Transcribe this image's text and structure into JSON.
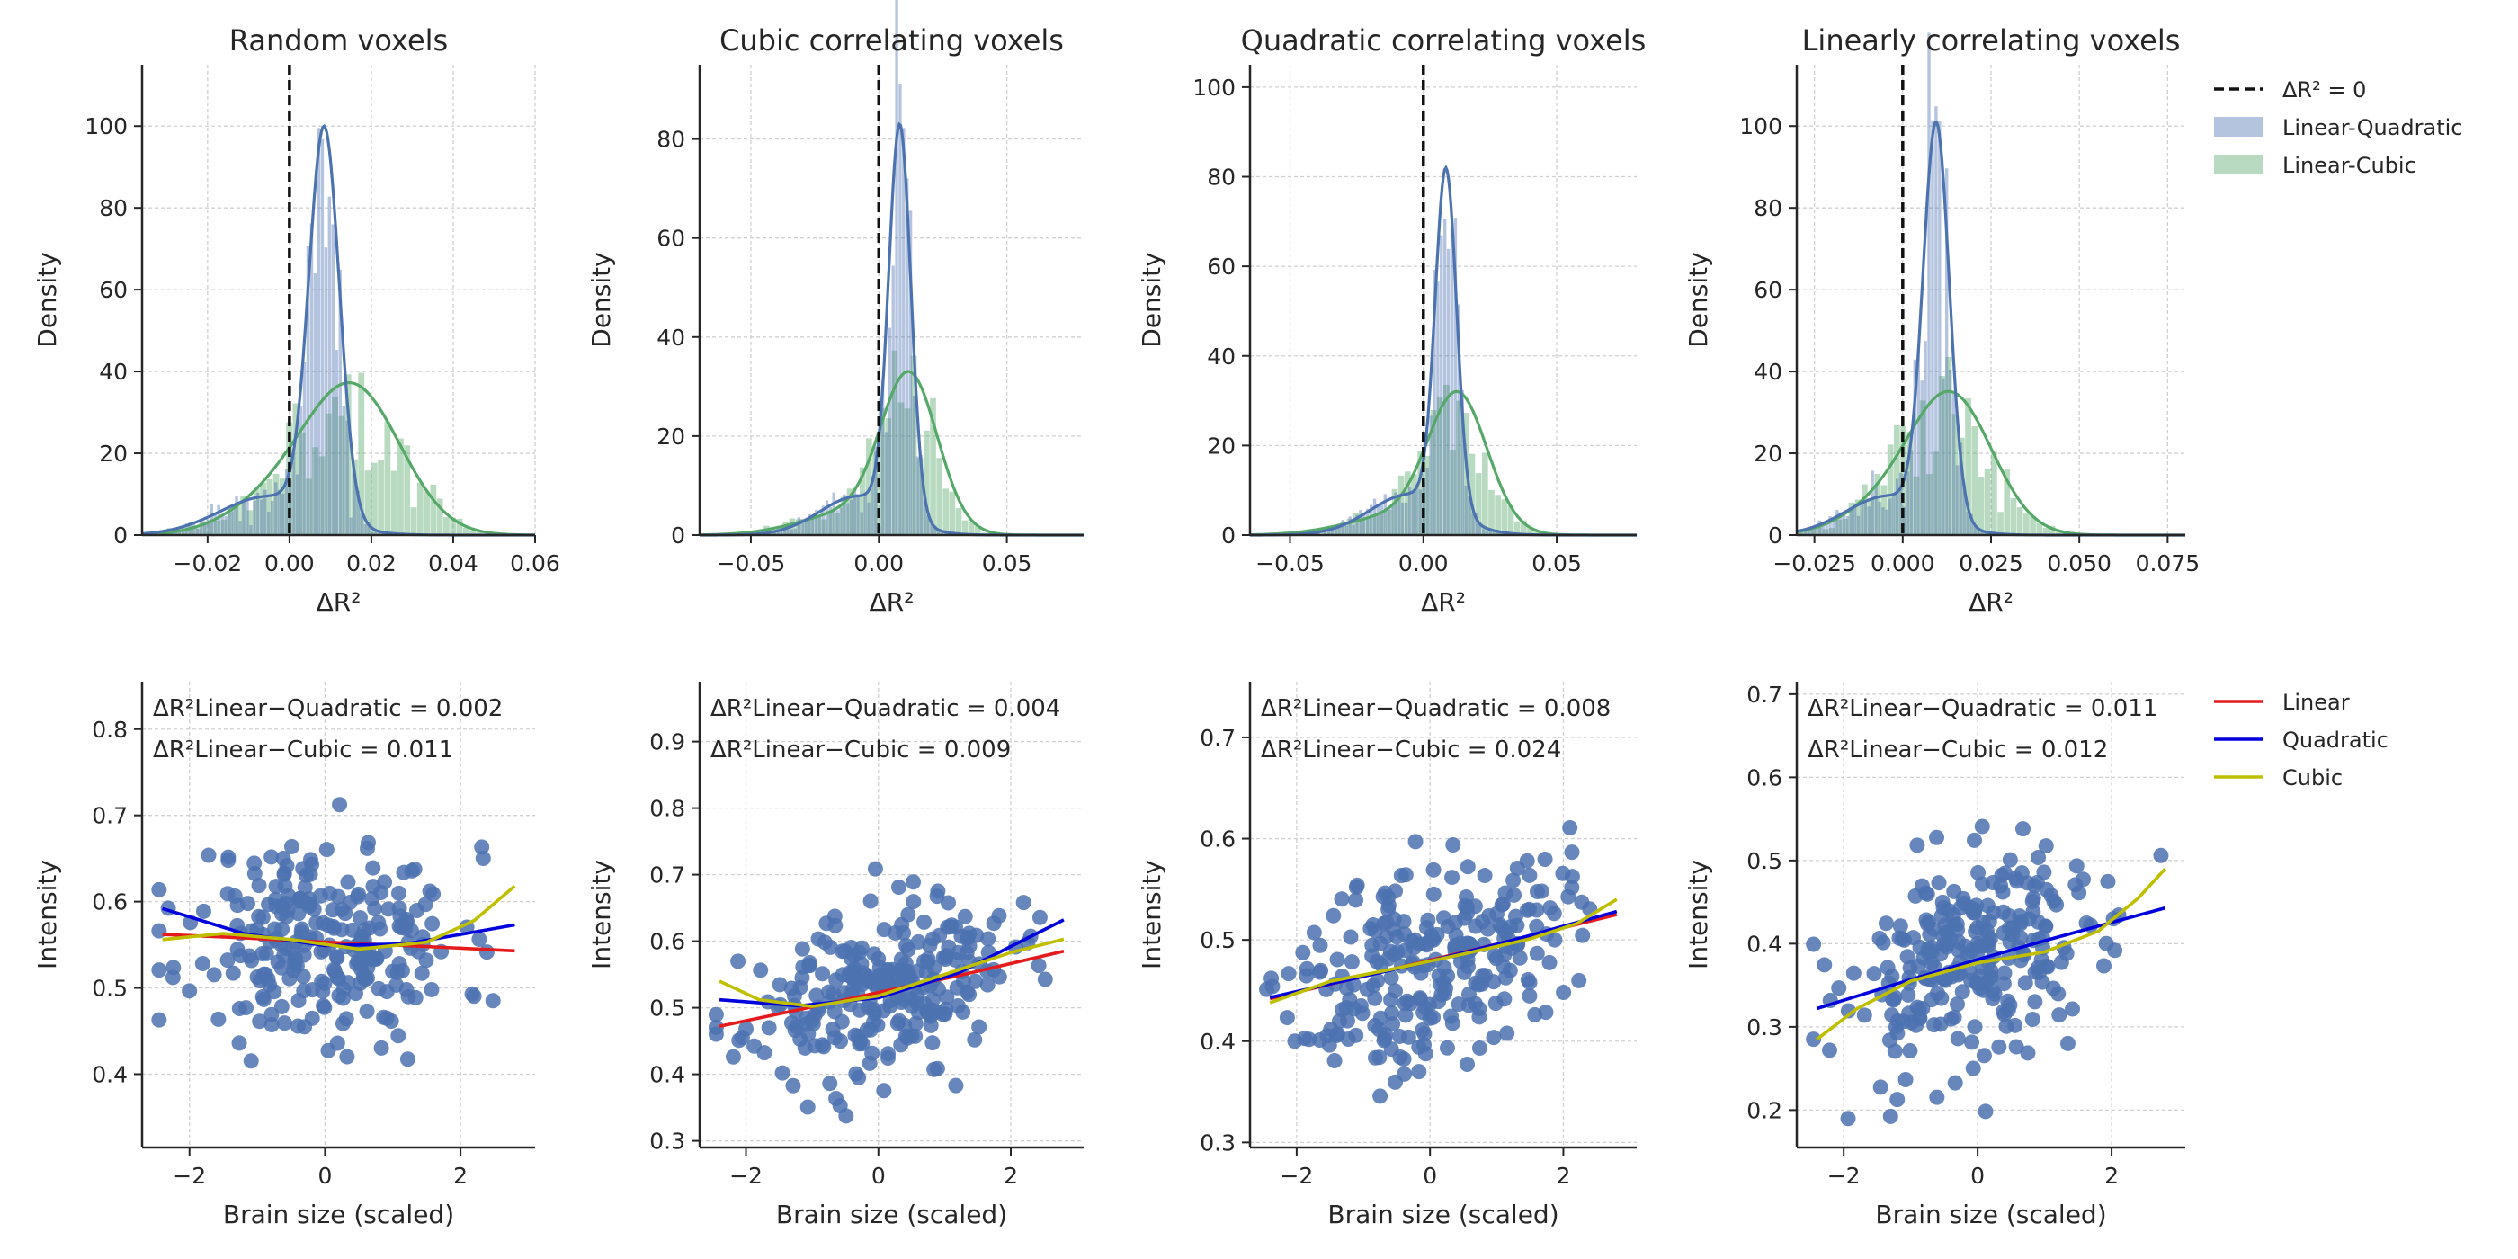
{
  "chart_data": [
    {
      "type": "histogram",
      "title": "Random voxels",
      "xlabel": "ΔR²",
      "ylabel": "Density",
      "xlim": [
        -0.036,
        0.06
      ],
      "ylim": [
        0,
        115
      ],
      "xticks": [
        -0.02,
        0.0,
        0.02,
        0.04,
        0.06
      ],
      "xtick_labels": [
        "−0.02",
        "0.00",
        "0.02",
        "0.04",
        "0.06"
      ],
      "yticks": [
        0,
        20,
        40,
        60,
        80,
        100
      ],
      "reference_line_x": 0,
      "series": [
        {
          "name": "Linear-Quadratic",
          "color": "#4c72b0",
          "kde": {
            "mu": 0.0085,
            "sigma": 0.0037,
            "peak": 100,
            "tail_weight": 0.1,
            "tail_mu": -0.005,
            "tail_sigma": 0.012
          }
        },
        {
          "name": "Linear-Cubic",
          "color": "#55a868",
          "kde": {
            "mu": 0.016,
            "sigma": 0.0115,
            "peak": 37,
            "tail_weight": 0.25,
            "tail_mu": -0.002,
            "tail_sigma": 0.012
          }
        }
      ]
    },
    {
      "type": "histogram",
      "title": "Cubic correlating voxels",
      "xlabel": "ΔR²",
      "ylabel": "Density",
      "xlim": [
        -0.07,
        0.08
      ],
      "ylim": [
        0,
        95
      ],
      "xticks": [
        -0.05,
        0.0,
        0.05
      ],
      "xtick_labels": [
        "−0.05",
        "0.00",
        "0.05"
      ],
      "yticks": [
        0,
        20,
        40,
        60,
        80
      ],
      "reference_line_x": 0,
      "series": [
        {
          "name": "Linear-Quadratic",
          "color": "#4c72b0",
          "kde": {
            "mu": 0.0082,
            "sigma": 0.0043,
            "peak": 83,
            "tail_weight": 0.1,
            "tail_mu": -0.008,
            "tail_sigma": 0.015
          }
        },
        {
          "name": "Linear-Cubic",
          "color": "#55a868",
          "kde": {
            "mu": 0.012,
            "sigma": 0.011,
            "peak": 33,
            "tail_weight": 0.15,
            "tail_mu": -0.01,
            "tail_sigma": 0.02
          }
        }
      ]
    },
    {
      "type": "histogram",
      "title": "Quadratic correlating voxels",
      "xlabel": "ΔR²",
      "ylabel": "Density",
      "xlim": [
        -0.065,
        0.08
      ],
      "ylim": [
        0,
        105
      ],
      "xticks": [
        -0.05,
        0.0,
        0.05
      ],
      "xtick_labels": [
        "−0.05",
        "0.00",
        "0.05"
      ],
      "yticks": [
        0,
        20,
        40,
        60,
        80,
        100
      ],
      "reference_line_x": 0,
      "series": [
        {
          "name": "Linear-Quadratic",
          "color": "#4c72b0",
          "kde": {
            "mu": 0.0085,
            "sigma": 0.004,
            "peak": 82,
            "tail_weight": 0.12,
            "tail_mu": -0.005,
            "tail_sigma": 0.015
          }
        },
        {
          "name": "Linear-Cubic",
          "color": "#55a868",
          "kde": {
            "mu": 0.013,
            "sigma": 0.011,
            "peak": 32,
            "tail_weight": 0.15,
            "tail_mu": -0.008,
            "tail_sigma": 0.02
          }
        }
      ]
    },
    {
      "type": "histogram",
      "title": "Linearly correlating voxels",
      "xlabel": "ΔR²",
      "ylabel": "Density",
      "xlim": [
        -0.03,
        0.08
      ],
      "ylim": [
        0,
        115
      ],
      "xticks": [
        -0.025,
        0.0,
        0.025,
        0.05,
        0.075
      ],
      "xtick_labels": [
        "−0.025",
        "0.000",
        "0.025",
        "0.050",
        "0.075"
      ],
      "yticks": [
        0,
        20,
        40,
        60,
        80,
        100
      ],
      "reference_line_x": 0,
      "series": [
        {
          "name": "Linear-Quadratic",
          "color": "#4c72b0",
          "kde": {
            "mu": 0.0095,
            "sigma": 0.0037,
            "peak": 101,
            "tail_weight": 0.1,
            "tail_mu": -0.004,
            "tail_sigma": 0.012
          }
        },
        {
          "name": "Linear-Cubic",
          "color": "#55a868",
          "kde": {
            "mu": 0.014,
            "sigma": 0.0115,
            "peak": 35,
            "tail_weight": 0.2,
            "tail_mu": -0.005,
            "tail_sigma": 0.012
          }
        }
      ]
    },
    {
      "type": "scatter",
      "xlabel": "Brain size (scaled)",
      "ylabel": "Intensity",
      "xlim": [
        -2.7,
        3.1
      ],
      "ylim": [
        0.315,
        0.855
      ],
      "xticks": [
        -2,
        0,
        2
      ],
      "xtick_labels": [
        "−2",
        "0",
        "2"
      ],
      "yticks": [
        0.4,
        0.5,
        0.6,
        0.7,
        0.8
      ],
      "annotation_1": "ΔR²Linear−Quadratic = 0.002",
      "annotation_2": "ΔR²Linear−Cubic = 0.011",
      "points": {
        "count": 260,
        "y_center": 0.555,
        "slope": -0.003,
        "noise": 0.058,
        "seed": 11
      },
      "fits": [
        {
          "name": "Linear",
          "color": "#e41a1c",
          "x": [
            -2.4,
            -1.2,
            0,
            1.2,
            2.8
          ],
          "y": [
            0.562,
            0.558,
            0.553,
            0.549,
            0.543
          ]
        },
        {
          "name": "Quadratic",
          "color": "#0000dd",
          "x": [
            -2.4,
            -1.2,
            0,
            1.2,
            2.8
          ],
          "y": [
            0.592,
            0.563,
            0.549,
            0.551,
            0.573
          ]
        },
        {
          "name": "Cubic",
          "color": "#bfbf00",
          "x": [
            -2.4,
            -1.5,
            -0.5,
            0.5,
            1.5,
            2.2,
            2.8
          ],
          "y": [
            0.556,
            0.563,
            0.556,
            0.545,
            0.553,
            0.578,
            0.618
          ]
        }
      ]
    },
    {
      "type": "scatter",
      "xlabel": "Brain size (scaled)",
      "ylabel": "Intensity",
      "xlim": [
        -2.7,
        3.1
      ],
      "ylim": [
        0.29,
        0.99
      ],
      "xticks": [
        -2,
        0,
        2
      ],
      "xtick_labels": [
        "−2",
        "0",
        "2"
      ],
      "yticks": [
        0.3,
        0.4,
        0.5,
        0.6,
        0.7,
        0.8,
        0.9
      ],
      "annotation_1": "ΔR²Linear−Quadratic = 0.004",
      "annotation_2": "ΔR²Linear−Cubic = 0.009",
      "points": {
        "count": 260,
        "y_center": 0.525,
        "slope": 0.02,
        "noise": 0.06,
        "seed": 23
      },
      "fits": [
        {
          "name": "Linear",
          "color": "#e41a1c",
          "x": [
            -2.4,
            -1.2,
            0,
            1.2,
            2.8
          ],
          "y": [
            0.472,
            0.497,
            0.523,
            0.548,
            0.585
          ]
        },
        {
          "name": "Quadratic",
          "color": "#0000dd",
          "x": [
            -2.4,
            -1.2,
            0,
            1.2,
            2.8
          ],
          "y": [
            0.512,
            0.503,
            0.515,
            0.552,
            0.632
          ]
        },
        {
          "name": "Cubic",
          "color": "#bfbf00",
          "x": [
            -2.4,
            -1.8,
            -1.0,
            0,
            1.0,
            2.0,
            2.8
          ],
          "y": [
            0.54,
            0.512,
            0.502,
            0.518,
            0.55,
            0.583,
            0.603
          ]
        }
      ]
    },
    {
      "type": "scatter",
      "xlabel": "Brain size (scaled)",
      "ylabel": "Intensity",
      "xlim": [
        -2.7,
        3.1
      ],
      "ylim": [
        0.295,
        0.755
      ],
      "xticks": [
        -2,
        0,
        2
      ],
      "xtick_labels": [
        "−2",
        "0",
        "2"
      ],
      "yticks": [
        0.3,
        0.4,
        0.5,
        0.6,
        0.7
      ],
      "annotation_1": "ΔR²Linear−Quadratic = 0.008",
      "annotation_2": "ΔR²Linear−Cubic = 0.024",
      "points": {
        "count": 260,
        "y_center": 0.48,
        "slope": 0.02,
        "noise": 0.05,
        "seed": 37
      },
      "fits": [
        {
          "name": "Linear",
          "color": "#e41a1c",
          "x": [
            -2.4,
            -1.2,
            0,
            1.2,
            2.8
          ],
          "y": [
            0.442,
            0.461,
            0.48,
            0.499,
            0.525
          ]
        },
        {
          "name": "Quadratic",
          "color": "#0000dd",
          "x": [
            -2.4,
            -1.2,
            0,
            1.2,
            2.8
          ],
          "y": [
            0.443,
            0.461,
            0.479,
            0.499,
            0.528
          ]
        },
        {
          "name": "Cubic",
          "color": "#bfbf00",
          "x": [
            -2.4,
            -1.5,
            -0.5,
            0.5,
            1.5,
            2.2,
            2.8
          ],
          "y": [
            0.438,
            0.459,
            0.472,
            0.486,
            0.501,
            0.516,
            0.54
          ]
        }
      ]
    },
    {
      "type": "scatter",
      "xlabel": "Brain size (scaled)",
      "ylabel": "Intensity",
      "xlim": [
        -2.7,
        3.1
      ],
      "ylim": [
        0.155,
        0.715
      ],
      "xticks": [
        -2,
        0,
        2
      ],
      "xtick_labels": [
        "−2",
        "0",
        "2"
      ],
      "yticks": [
        0.2,
        0.3,
        0.4,
        0.5,
        0.6,
        0.7
      ],
      "annotation_1": "ΔR²Linear−Quadratic = 0.011",
      "annotation_2": "ΔR²Linear−Cubic = 0.012",
      "points": {
        "count": 260,
        "y_center": 0.38,
        "slope": 0.025,
        "noise": 0.065,
        "seed": 53
      },
      "fits": [
        {
          "name": "Quadratic",
          "color": "#0000dd",
          "x": [
            -2.4,
            -1.2,
            0,
            1.2,
            2.8
          ],
          "y": [
            0.322,
            0.352,
            0.381,
            0.408,
            0.443
          ]
        },
        {
          "name": "Cubic",
          "color": "#bfbf00",
          "x": [
            -2.4,
            -1.8,
            -1.0,
            0,
            1.0,
            1.8,
            2.4,
            2.8
          ],
          "y": [
            0.285,
            0.322,
            0.355,
            0.377,
            0.39,
            0.415,
            0.455,
            0.49
          ]
        }
      ]
    }
  ],
  "legend_top": {
    "ref_label": "ΔR² = 0",
    "items": [
      {
        "label": "Linear-Quadratic",
        "color": "#4c72b0"
      },
      {
        "label": "Linear-Cubic",
        "color": "#55a868"
      }
    ]
  },
  "legend_bottom": {
    "items": [
      {
        "label": "Linear",
        "color": "#e41a1c"
      },
      {
        "label": "Quadratic",
        "color": "#0000dd"
      },
      {
        "label": "Cubic",
        "color": "#bfbf00"
      }
    ]
  }
}
